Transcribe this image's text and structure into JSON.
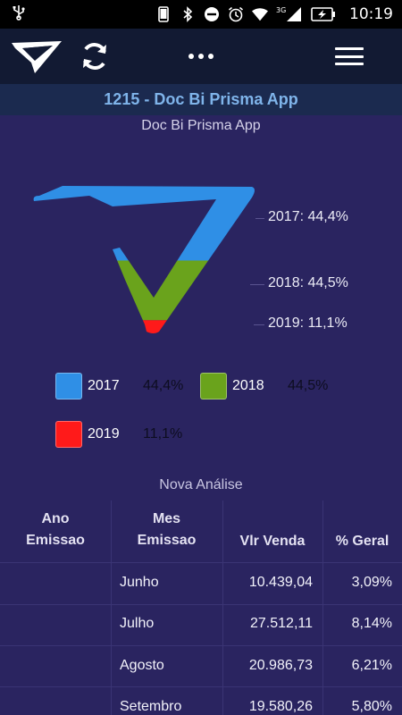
{
  "status_bar": {
    "usb_icon": "usb-icon",
    "icons": [
      "phone-icon",
      "bluetooth-icon",
      "do-not-disturb-icon",
      "alarm-icon",
      "wifi-icon",
      "signal-3g-icon",
      "battery-charging-icon"
    ],
    "network": "3G",
    "time": "10:19"
  },
  "toolbar": {
    "logo_icon": "brand-logo-icon",
    "refresh_icon": "refresh-icon",
    "more_icon": "more-horizontal-icon",
    "menu_icon": "hamburger-menu-icon"
  },
  "header": {
    "title": "1215 - Doc Bi Prisma App",
    "subtitle": "Doc Bi Prisma App"
  },
  "chart_data": {
    "type": "pie",
    "categories": [
      "2017",
      "2018",
      "2019"
    ],
    "values": [
      44.4,
      44.5,
      11.1
    ],
    "labels": [
      "2017: 44,4%",
      "2018: 44,5%",
      "2019: 11,1%"
    ],
    "colors": [
      "#2f8fe6",
      "#6aa31c",
      "#ff1a1a"
    ]
  },
  "legend": [
    {
      "year": "2017",
      "pct": "44,4%",
      "color": "#2f8fe6"
    },
    {
      "year": "2018",
      "pct": "44,5%",
      "color": "#6aa31c"
    },
    {
      "year": "2019",
      "pct": "11,1%",
      "color": "#ff1a1a"
    }
  ],
  "table": {
    "section_title": "Nova Análise",
    "headers": {
      "ano_line1": "Ano",
      "ano_line2": "Emissao",
      "mes_line1": "Mes",
      "mes_line2": "Emissao",
      "vlr": "Vlr Venda",
      "geral": "% Geral"
    },
    "rows": [
      {
        "mes": "Junho",
        "vlr": "10.439,04",
        "geral": "3,09%"
      },
      {
        "mes": "Julho",
        "vlr": "27.512,11",
        "geral": "8,14%"
      },
      {
        "mes": "Agosto",
        "vlr": "20.986,73",
        "geral": "6,21%"
      },
      {
        "mes": "Setembro",
        "vlr": "19.580,26",
        "geral": "5,80%"
      }
    ]
  }
}
